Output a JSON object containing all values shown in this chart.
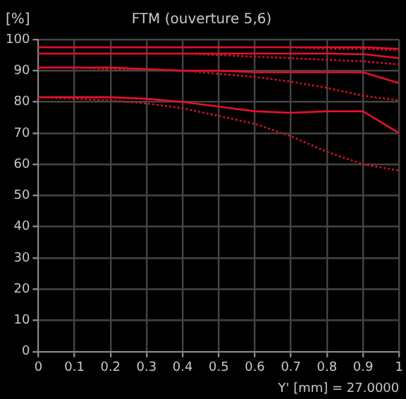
{
  "chart_data": {
    "type": "line",
    "title": "FTM (ouverture 5,6)",
    "xlabel": "Y' [mm] = 27.0000",
    "ylabel": "[%]",
    "x": [
      0,
      0.1,
      0.2,
      0.3,
      0.4,
      0.5,
      0.6,
      0.7,
      0.8,
      0.9,
      1
    ],
    "series": [
      {
        "color": "#e8102a",
        "line_style": "solid",
        "values": [
          97.5,
          97.5,
          97.5,
          97.5,
          97.5,
          97.5,
          97.5,
          97.5,
          97.5,
          97.5,
          97
        ]
      },
      {
        "color": "#d0102a",
        "line_style": "dotted",
        "values": [
          97.5,
          97.5,
          97.5,
          97.5,
          97.5,
          97.5,
          97.5,
          97.5,
          97,
          97,
          96.5
        ]
      },
      {
        "color": "#e8102a",
        "line_style": "solid",
        "values": [
          95.5,
          95.5,
          95.5,
          95.5,
          95.5,
          95.5,
          95.5,
          95.5,
          95.5,
          95.3,
          94
        ]
      },
      {
        "color": "#d0102a",
        "line_style": "dotted",
        "values": [
          95.5,
          95.5,
          95.5,
          95.5,
          95.5,
          95,
          94.5,
          94,
          93.5,
          93,
          92
        ]
      },
      {
        "color": "#e8102a",
        "line_style": "solid",
        "values": [
          91,
          91,
          91,
          90.5,
          90,
          90,
          89.5,
          89.5,
          89.5,
          89.5,
          86
        ]
      },
      {
        "color": "#d0102a",
        "line_style": "dotted",
        "values": [
          91,
          91,
          90.5,
          90.5,
          90,
          89,
          88,
          86.5,
          84.5,
          82,
          80.5
        ]
      },
      {
        "color": "#e8102a",
        "line_style": "solid",
        "values": [
          81.5,
          81.5,
          81.5,
          81,
          80,
          78.5,
          77,
          76.5,
          77,
          77,
          70
        ]
      },
      {
        "color": "#d0102a",
        "line_style": "dotted",
        "values": [
          81.5,
          81,
          80.5,
          79.5,
          78,
          75.5,
          73,
          69,
          64,
          60,
          58
        ]
      }
    ],
    "xlim": [
      0,
      1
    ],
    "xticks": [
      0,
      0.1,
      0.2,
      0.3,
      0.4,
      0.5,
      0.6,
      0.7,
      0.8,
      0.9,
      1
    ],
    "ylim": [
      0,
      100
    ],
    "yticks": [
      0,
      10,
      20,
      30,
      40,
      50,
      60,
      70,
      80,
      90,
      100
    ],
    "grid": true,
    "legend": false,
    "marker": "none"
  }
}
